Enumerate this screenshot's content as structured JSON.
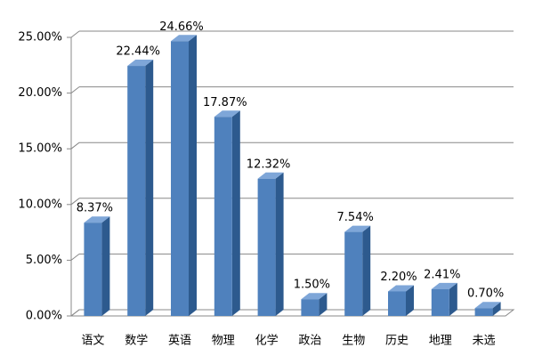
{
  "chart_data": {
    "type": "bar",
    "categories": [
      "语文",
      "数学",
      "英语",
      "物理",
      "化学",
      "政治",
      "生物",
      "历史",
      "地理",
      "未选"
    ],
    "values": [
      8.37,
      22.44,
      24.66,
      17.87,
      12.32,
      1.5,
      7.54,
      2.2,
      2.41,
      0.7
    ],
    "value_labels": [
      "8.37%",
      "22.44%",
      "24.66%",
      "17.87%",
      "12.32%",
      "1.50%",
      "7.54%",
      "2.20%",
      "2.41%",
      "0.70%"
    ],
    "color": "#4f81bd",
    "ylim": [
      0,
      25
    ],
    "yticks": [
      {
        "value": 0,
        "label": "0.00%"
      },
      {
        "value": 5,
        "label": "5.00%"
      },
      {
        "value": 10,
        "label": "10.00%"
      },
      {
        "value": 15,
        "label": "15.00%"
      },
      {
        "value": 20,
        "label": "20.00%"
      },
      {
        "value": 25,
        "label": "25.00%"
      }
    ],
    "grid": true
  }
}
